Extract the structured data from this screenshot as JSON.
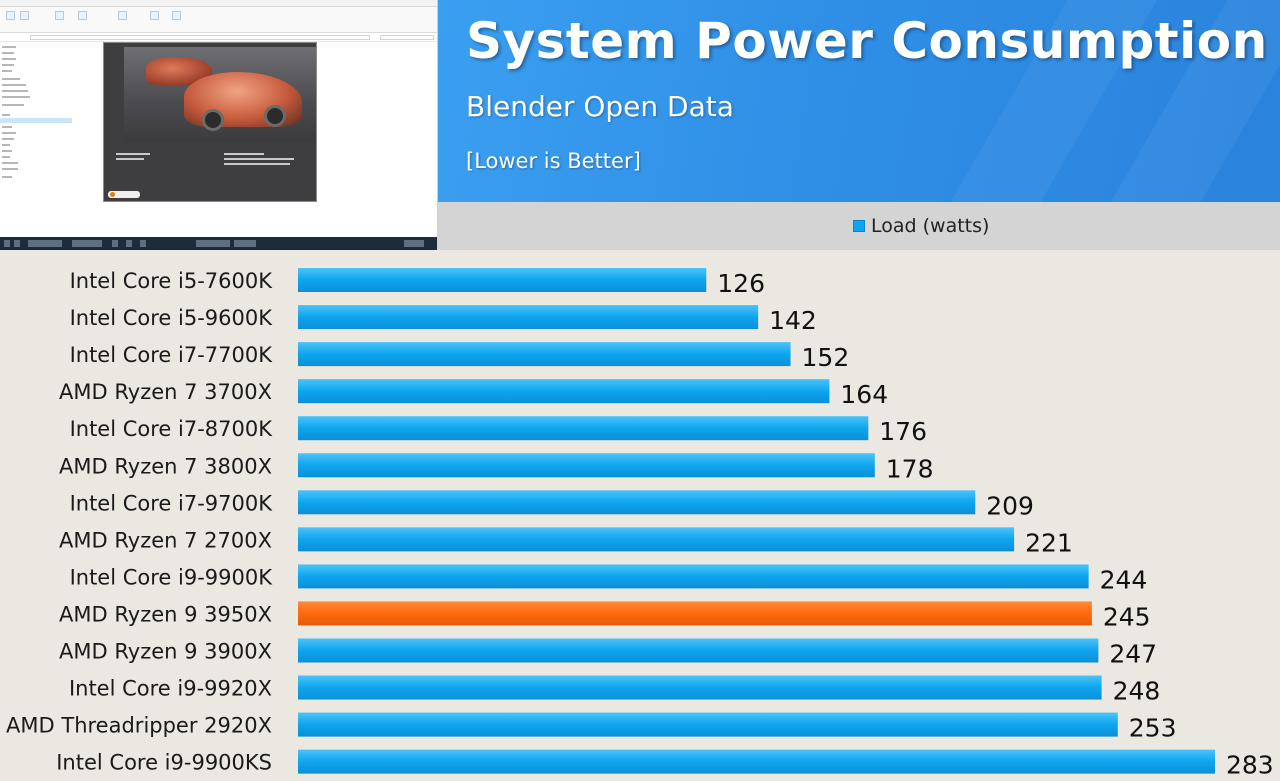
{
  "title": "System Power Consumption",
  "subtitle": "Blender Open Data",
  "note": "[Lower is Better]",
  "legend": {
    "label": "Load (watts)",
    "color": "#0ea5ef"
  },
  "colors": {
    "bar": "#0ea5ef",
    "highlight": "#ff6a0d",
    "banner": "#2f8fe6"
  },
  "chart_data": {
    "type": "bar",
    "orientation": "horizontal",
    "title": "System Power Consumption",
    "subtitle": "Blender Open Data",
    "note": "[Lower is Better]",
    "categories": [
      "Intel Core i5-7600K",
      "Intel Core i5-9600K",
      "Intel Core i7-7700K",
      "AMD Ryzen 7 3700X",
      "Intel Core i7-8700K",
      "AMD Ryzen 7 3800X",
      "Intel Core i7-9700K",
      "AMD Ryzen 7 2700X",
      "Intel Core i9-9900K",
      "AMD Ryzen 9 3950X",
      "AMD Ryzen 9 3900X",
      "Intel Core i9-9920X",
      "AMD Threadripper 2920X",
      "Intel Core i9-9900KS"
    ],
    "series": [
      {
        "name": "Load (watts)",
        "values": [
          126,
          142,
          152,
          164,
          176,
          178,
          209,
          221,
          244,
          245,
          247,
          248,
          253,
          283
        ]
      }
    ],
    "highlighted_category": "AMD Ryzen 9 3950X",
    "xlim": [
      0,
      283
    ],
    "grid": false,
    "legend_position": "top-center"
  }
}
